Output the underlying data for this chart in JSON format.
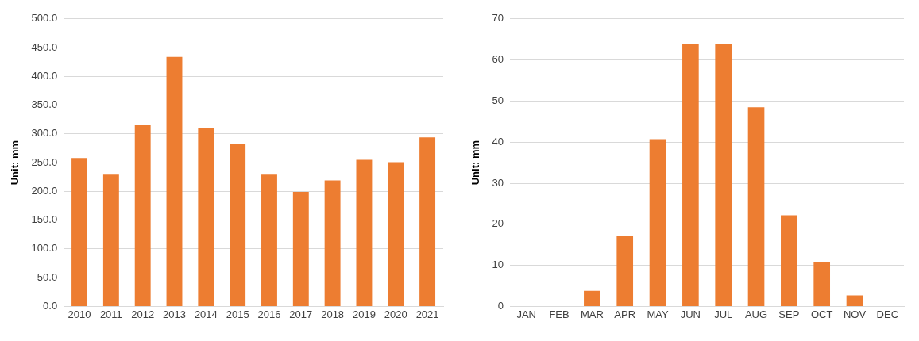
{
  "chart_data": [
    {
      "type": "bar",
      "ylabel": "Unit: mm",
      "categories": [
        "2010",
        "2011",
        "2012",
        "2013",
        "2014",
        "2015",
        "2016",
        "2017",
        "2018",
        "2019",
        "2020",
        "2021"
      ],
      "values": [
        258,
        229,
        316,
        434,
        310,
        282,
        229,
        199,
        219,
        255,
        251,
        294
      ],
      "color": "#ed7d31",
      "ylim": [
        0,
        500
      ],
      "yticks": [
        {
          "value": 0,
          "label": "0.0"
        },
        {
          "value": 50,
          "label": "50.0"
        },
        {
          "value": 100,
          "label": "100.0"
        },
        {
          "value": 150,
          "label": "150.0"
        },
        {
          "value": 200,
          "label": "200.0"
        },
        {
          "value": 250,
          "label": "250.0"
        },
        {
          "value": 300,
          "label": "300.0"
        },
        {
          "value": 350,
          "label": "350.0"
        },
        {
          "value": 400,
          "label": "400.0"
        },
        {
          "value": 450,
          "label": "450.0"
        },
        {
          "value": 500,
          "label": "500.0"
        }
      ],
      "grid": "y"
    },
    {
      "type": "bar",
      "ylabel": "Unit: mm",
      "categories": [
        "JAN",
        "FEB",
        "MAR",
        "APR",
        "MAY",
        "JUN",
        "JUL",
        "AUG",
        "SEP",
        "OCT",
        "NOV",
        "DEC"
      ],
      "values": [
        0,
        0,
        3.8,
        17.2,
        40.7,
        64.0,
        63.8,
        48.5,
        22.2,
        10.8,
        2.7,
        0
      ],
      "color": "#ed7d31",
      "ylim": [
        0,
        70
      ],
      "yticks": [
        0,
        10,
        20,
        30,
        40,
        50,
        60,
        70
      ],
      "grid": "y"
    }
  ]
}
